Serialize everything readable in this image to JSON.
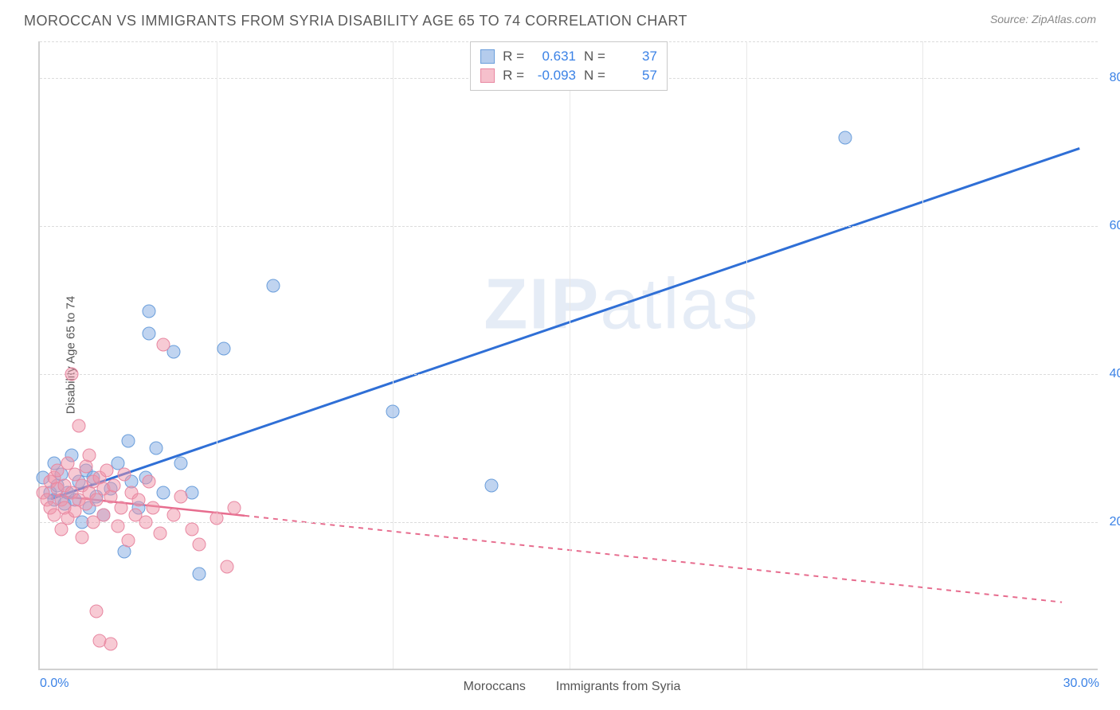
{
  "header": {
    "title": "MOROCCAN VS IMMIGRANTS FROM SYRIA DISABILITY AGE 65 TO 74 CORRELATION CHART",
    "source": "Source: ZipAtlas.com"
  },
  "chart": {
    "type": "scatter",
    "ylabel": "Disability Age 65 to 74",
    "background_color": "#ffffff",
    "grid_color": "#dcdcdc",
    "axis_color": "#d0d0d0",
    "tick_label_color": "#3b82e6",
    "tick_fontsize": 16,
    "ylabel_fontsize": 15,
    "marker_size": 17,
    "xlim": [
      0,
      30
    ],
    "ylim": [
      0,
      85
    ],
    "xticks": [
      0.0,
      30.0
    ],
    "xtick_labels": [
      "0.0%",
      "30.0%"
    ],
    "yticks": [
      20.0,
      40.0,
      60.0,
      80.0
    ],
    "ytick_labels": [
      "20.0%",
      "40.0%",
      "60.0%",
      "80.0%"
    ],
    "x_minor_ticks": [
      5,
      10,
      15,
      20,
      25
    ],
    "watermark": "ZIPatlas",
    "series": [
      {
        "id": "moroccans",
        "label": "Moroccans",
        "color_fill": "rgba(130,170,225,0.5)",
        "color_stroke": "#6a9edb",
        "trend_color": "#2f6fd6",
        "trend_width": 3,
        "trend_dash": "none",
        "trend": {
          "x1": 0.3,
          "y1": 23.0,
          "x2": 29.5,
          "y2": 70.5
        },
        "points": [
          [
            0.1,
            26.0
          ],
          [
            0.3,
            24.0
          ],
          [
            0.4,
            28.0
          ],
          [
            0.4,
            23.0
          ],
          [
            0.5,
            25.0
          ],
          [
            0.6,
            26.5
          ],
          [
            0.7,
            22.5
          ],
          [
            0.8,
            24.0
          ],
          [
            0.9,
            29.0
          ],
          [
            1.0,
            23.0
          ],
          [
            1.1,
            25.5
          ],
          [
            1.2,
            20.0
          ],
          [
            1.3,
            27.0
          ],
          [
            1.4,
            22.0
          ],
          [
            1.5,
            26.0
          ],
          [
            1.6,
            23.5
          ],
          [
            1.8,
            21.0
          ],
          [
            2.0,
            24.5
          ],
          [
            2.2,
            28.0
          ],
          [
            2.4,
            16.0
          ],
          [
            2.5,
            31.0
          ],
          [
            2.6,
            25.5
          ],
          [
            2.8,
            22.0
          ],
          [
            3.0,
            26.0
          ],
          [
            3.1,
            48.5
          ],
          [
            3.1,
            45.5
          ],
          [
            3.3,
            30.0
          ],
          [
            3.5,
            24.0
          ],
          [
            3.8,
            43.0
          ],
          [
            4.0,
            28.0
          ],
          [
            4.3,
            24.0
          ],
          [
            4.5,
            13.0
          ],
          [
            5.2,
            43.5
          ],
          [
            6.6,
            52.0
          ],
          [
            10.0,
            35.0
          ],
          [
            12.8,
            25.0
          ],
          [
            22.8,
            72.0
          ]
        ]
      },
      {
        "id": "syria",
        "label": "Immigrants from Syria",
        "color_fill": "rgba(240,150,170,0.5)",
        "color_stroke": "#e887a1",
        "trend_color": "#e76c8e",
        "trend_width": 2.5,
        "trend_dash": "6,6",
        "trend_solid_until_x": 5.8,
        "trend": {
          "x1": 0.3,
          "y1": 23.5,
          "x2": 29.0,
          "y2": 9.0
        },
        "points": [
          [
            0.1,
            24.0
          ],
          [
            0.2,
            23.0
          ],
          [
            0.3,
            25.5
          ],
          [
            0.3,
            22.0
          ],
          [
            0.4,
            26.0
          ],
          [
            0.4,
            21.0
          ],
          [
            0.5,
            24.5
          ],
          [
            0.5,
            27.0
          ],
          [
            0.6,
            23.0
          ],
          [
            0.6,
            19.0
          ],
          [
            0.7,
            25.0
          ],
          [
            0.7,
            22.0
          ],
          [
            0.8,
            28.0
          ],
          [
            0.8,
            20.5
          ],
          [
            0.9,
            24.0
          ],
          [
            0.9,
            40.0
          ],
          [
            1.0,
            26.5
          ],
          [
            1.0,
            21.5
          ],
          [
            1.1,
            23.0
          ],
          [
            1.1,
            33.0
          ],
          [
            1.2,
            25.0
          ],
          [
            1.2,
            18.0
          ],
          [
            1.3,
            27.5
          ],
          [
            1.3,
            22.5
          ],
          [
            1.4,
            24.0
          ],
          [
            1.4,
            29.0
          ],
          [
            1.5,
            20.0
          ],
          [
            1.5,
            25.5
          ],
          [
            1.6,
            23.0
          ],
          [
            1.6,
            8.0
          ],
          [
            1.7,
            26.0
          ],
          [
            1.7,
            4.0
          ],
          [
            1.8,
            24.5
          ],
          [
            1.8,
            21.0
          ],
          [
            1.9,
            27.0
          ],
          [
            2.0,
            23.5
          ],
          [
            2.0,
            3.5
          ],
          [
            2.1,
            25.0
          ],
          [
            2.2,
            19.5
          ],
          [
            2.3,
            22.0
          ],
          [
            2.4,
            26.5
          ],
          [
            2.5,
            17.5
          ],
          [
            2.6,
            24.0
          ],
          [
            2.7,
            21.0
          ],
          [
            2.8,
            23.0
          ],
          [
            3.0,
            20.0
          ],
          [
            3.1,
            25.5
          ],
          [
            3.2,
            22.0
          ],
          [
            3.4,
            18.5
          ],
          [
            3.5,
            44.0
          ],
          [
            3.8,
            21.0
          ],
          [
            4.0,
            23.5
          ],
          [
            4.3,
            19.0
          ],
          [
            4.5,
            17.0
          ],
          [
            5.0,
            20.5
          ],
          [
            5.3,
            14.0
          ],
          [
            5.5,
            22.0
          ]
        ]
      }
    ],
    "stats_box": {
      "series": [
        {
          "swatch": "blue",
          "r_label": "R =",
          "r_value": "0.631",
          "n_label": "N =",
          "n_value": "37"
        },
        {
          "swatch": "pink",
          "r_label": "R =",
          "r_value": "-0.093",
          "n_label": "N =",
          "n_value": "57"
        }
      ]
    },
    "legend": {
      "items": [
        {
          "swatch": "blue",
          "label": "Moroccans"
        },
        {
          "swatch": "pink",
          "label": "Immigrants from Syria"
        }
      ]
    }
  }
}
